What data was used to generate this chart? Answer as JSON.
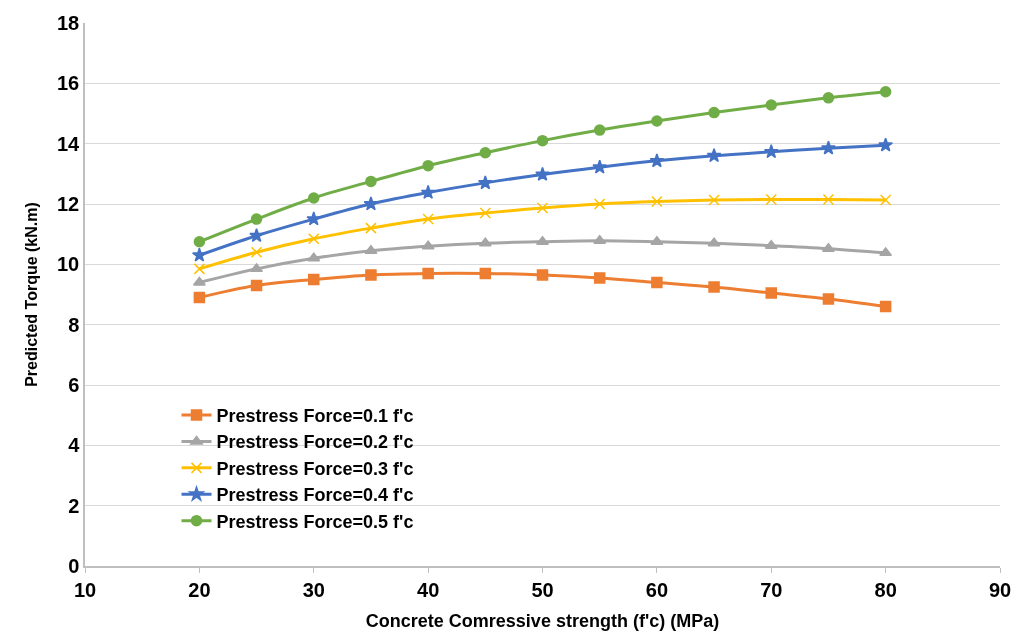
{
  "chart_data": {
    "type": "line",
    "xlabel": "Concrete Comressive strength (f'c) (MPa)",
    "ylabel": "Predicted Torque (kN.m)",
    "x": [
      20,
      25,
      30,
      35,
      40,
      45,
      50,
      55,
      60,
      65,
      70,
      75,
      80
    ],
    "xlim": [
      10,
      90
    ],
    "xticks": [
      10,
      20,
      30,
      40,
      50,
      60,
      70,
      80,
      90
    ],
    "ylim": [
      0,
      18
    ],
    "yticks": [
      0,
      2,
      4,
      6,
      8,
      10,
      12,
      14,
      16,
      18
    ],
    "grid": "y",
    "legend": "bottom left",
    "line_style": "solid",
    "series": [
      {
        "name": "Prestress Force=0.1 f'c",
        "color": "#ed7d31",
        "marker": "square",
        "values": [
          8.9,
          9.3,
          9.5,
          9.65,
          9.7,
          9.7,
          9.65,
          9.55,
          9.4,
          9.25,
          9.05,
          8.85,
          8.6
        ]
      },
      {
        "name": "Prestress Force=0.2 f'c",
        "color": "#a5a5a5",
        "marker": "triangle",
        "values": [
          9.4,
          9.85,
          10.2,
          10.45,
          10.6,
          10.7,
          10.75,
          10.78,
          10.75,
          10.7,
          10.62,
          10.52,
          10.38
        ]
      },
      {
        "name": "Prestress Force=0.3 f'c",
        "color": "#ffc000",
        "marker": "cross",
        "values": [
          9.85,
          10.4,
          10.85,
          11.2,
          11.5,
          11.7,
          11.87,
          12.0,
          12.08,
          12.13,
          12.15,
          12.15,
          12.13
        ]
      },
      {
        "name": "Prestress Force=0.4 f'c",
        "color": "#4472c4",
        "marker": "star",
        "values": [
          10.3,
          10.95,
          11.5,
          12.0,
          12.38,
          12.7,
          12.98,
          13.22,
          13.43,
          13.6,
          13.73,
          13.85,
          13.95
        ]
      },
      {
        "name": "Prestress Force=0.5 f'c",
        "color": "#70ad47",
        "marker": "circle",
        "values": [
          10.75,
          11.5,
          12.2,
          12.75,
          13.27,
          13.7,
          14.1,
          14.45,
          14.75,
          15.03,
          15.28,
          15.52,
          15.72
        ]
      }
    ]
  }
}
